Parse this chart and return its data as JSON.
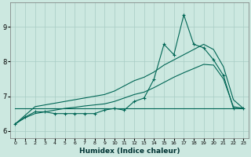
{
  "xlabel": "Humidex (Indice chaleur)",
  "bg_color": "#cce8e0",
  "grid_color": "#a8ccc4",
  "line_color": "#006655",
  "xlim": [
    -0.5,
    23.5
  ],
  "ylim": [
    5.8,
    9.7
  ],
  "yticks": [
    6,
    7,
    8,
    9
  ],
  "xticks": [
    0,
    1,
    2,
    3,
    4,
    5,
    6,
    7,
    8,
    9,
    10,
    11,
    12,
    13,
    14,
    15,
    16,
    17,
    18,
    19,
    20,
    21,
    22,
    23
  ],
  "x_data": [
    0,
    1,
    2,
    3,
    4,
    5,
    6,
    7,
    8,
    9,
    10,
    11,
    12,
    13,
    14,
    15,
    16,
    17,
    18,
    19,
    20,
    21,
    22,
    23
  ],
  "y_jagged": [
    6.2,
    6.4,
    6.55,
    6.55,
    6.5,
    6.5,
    6.5,
    6.5,
    6.5,
    6.6,
    6.65,
    6.6,
    6.85,
    6.95,
    7.5,
    8.5,
    8.2,
    9.35,
    8.5,
    8.4,
    8.05,
    7.6,
    6.65,
    6.65
  ],
  "y_line_upper": [
    6.2,
    6.45,
    6.7,
    6.75,
    6.8,
    6.85,
    6.9,
    6.95,
    7.0,
    7.05,
    7.15,
    7.3,
    7.45,
    7.55,
    7.7,
    7.9,
    8.05,
    8.2,
    8.35,
    8.5,
    8.35,
    7.85,
    6.9,
    6.65
  ],
  "y_line_lower": [
    6.2,
    6.38,
    6.5,
    6.55,
    6.6,
    6.65,
    6.68,
    6.72,
    6.75,
    6.78,
    6.85,
    6.95,
    7.05,
    7.12,
    7.25,
    7.4,
    7.55,
    7.68,
    7.8,
    7.92,
    7.9,
    7.5,
    6.7,
    6.65
  ],
  "y_flat": [
    6.65,
    6.65,
    6.65,
    6.65,
    6.65,
    6.65,
    6.65,
    6.65,
    6.65,
    6.65,
    6.65,
    6.65,
    6.65,
    6.65,
    6.65,
    6.65,
    6.65,
    6.65,
    6.65,
    6.65,
    6.65,
    6.65,
    6.65,
    6.65
  ]
}
